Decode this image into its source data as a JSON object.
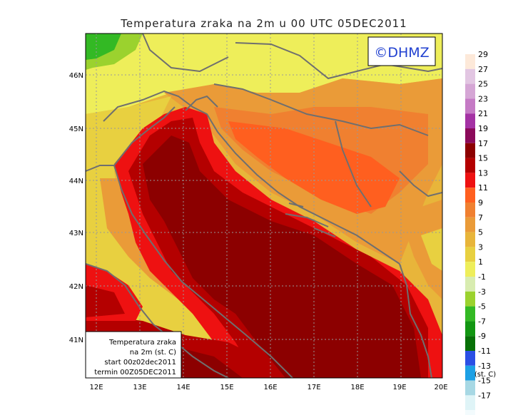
{
  "title": "Temperatura zraka na 2m u 00 UTC 05DEC2011",
  "watermark": "©DHMZ",
  "info_box": {
    "line1": "Temperatura zraka",
    "line2": "na 2m (st. C)",
    "line3": "start 00z02dec2011",
    "line4": "termin 00Z05DEC2011"
  },
  "lon_labels": [
    "12E",
    "13E",
    "14E",
    "15E",
    "16E",
    "17E",
    "18E",
    "19E",
    "20E"
  ],
  "lat_labels": [
    "46N",
    "45N",
    "44N",
    "43N",
    "42N",
    "41N"
  ],
  "legend": {
    "unit": "(st. C)",
    "classes": [
      {
        "label": "29",
        "color": "#fde9d9"
      },
      {
        "label": "27",
        "color": "#e2c6e2"
      },
      {
        "label": "25",
        "color": "#d5a6d5"
      },
      {
        "label": "23",
        "color": "#c57ac5"
      },
      {
        "label": "21",
        "color": "#a432a4"
      },
      {
        "label": "19",
        "color": "#8b0a5a"
      },
      {
        "label": "17",
        "color": "#8c0000"
      },
      {
        "label": "15",
        "color": "#b40000"
      },
      {
        "label": "13",
        "color": "#ee1111"
      },
      {
        "label": "11",
        "color": "#ff5f1f"
      },
      {
        "label": "9",
        "color": "#f08030"
      },
      {
        "label": "7",
        "color": "#ea9b38"
      },
      {
        "label": "5",
        "color": "#e8b53a"
      },
      {
        "label": "3",
        "color": "#e8d040"
      },
      {
        "label": "1",
        "color": "#eeee5a"
      },
      {
        "label": "-1",
        "color": "#d8ecb0"
      },
      {
        "label": "-3",
        "color": "#9bd22e"
      },
      {
        "label": "-5",
        "color": "#33b924"
      },
      {
        "label": "-7",
        "color": "#129612"
      },
      {
        "label": "-9",
        "color": "#077007"
      },
      {
        "label": "-11",
        "color": "#2a4fe5"
      },
      {
        "label": "-13",
        "color": "#1ca0e5"
      },
      {
        "label": "-15",
        "color": "#a7d8e4"
      },
      {
        "label": "-17",
        "color": "#dff4f7"
      }
    ],
    "bottom_color": "#f3fbfd"
  }
}
